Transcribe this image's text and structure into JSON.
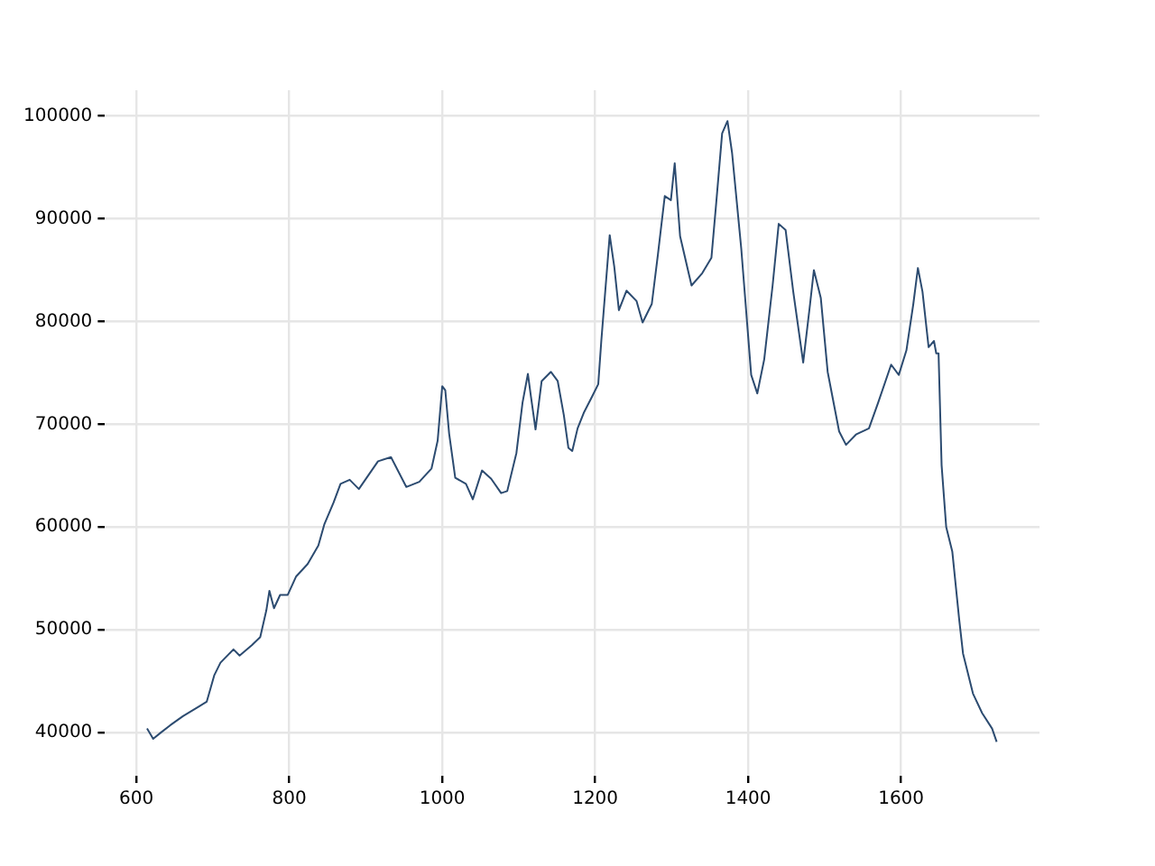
{
  "chart_data": {
    "type": "line",
    "x": [
      614,
      622,
      632,
      644,
      661,
      681,
      692,
      702,
      710,
      727,
      735,
      751,
      762,
      770,
      774,
      780,
      788,
      798,
      809,
      824,
      838,
      846,
      858,
      867,
      879,
      891,
      904,
      916,
      933,
      953,
      970,
      986,
      994,
      1000,
      1004,
      1009,
      1017,
      1031,
      1040,
      1052,
      1064,
      1077,
      1085,
      1097,
      1105,
      1112,
      1116,
      1122,
      1130,
      1142,
      1151,
      1159,
      1165,
      1170,
      1177,
      1185,
      1196,
      1204,
      1208,
      1219,
      1225,
      1231,
      1241,
      1254,
      1262,
      1274,
      1282,
      1291,
      1299,
      1304,
      1311,
      1326,
      1340,
      1352,
      1358,
      1366,
      1373,
      1379,
      1391,
      1404,
      1412,
      1421,
      1432,
      1440,
      1449,
      1459,
      1472,
      1481,
      1486,
      1495,
      1504,
      1519,
      1528,
      1541,
      1558,
      1570,
      1587,
      1597,
      1607,
      1616,
      1622,
      1628,
      1636,
      1643,
      1646,
      1649,
      1653,
      1659,
      1667,
      1676,
      1681,
      1694,
      1706,
      1719,
      1725
    ],
    "values": [
      40400,
      39400,
      40000,
      40700,
      41600,
      42500,
      43000,
      45600,
      46800,
      48100,
      47500,
      48500,
      49300,
      51900,
      53800,
      52100,
      53400,
      53400,
      55200,
      56400,
      58200,
      60300,
      62400,
      64200,
      64600,
      63700,
      65100,
      66400,
      66800,
      63900,
      64400,
      65700,
      68400,
      73700,
      73300,
      69100,
      64800,
      64200,
      62700,
      65500,
      64700,
      63300,
      63500,
      67200,
      72100,
      74900,
      72700,
      69500,
      74200,
      75100,
      74200,
      70900,
      67700,
      67400,
      69600,
      71100,
      72700,
      73900,
      78100,
      88400,
      85300,
      81100,
      83000,
      82000,
      79900,
      81700,
      86500,
      92200,
      91800,
      95400,
      88300,
      83500,
      84700,
      86200,
      91300,
      98300,
      99500,
      96400,
      87100,
      74800,
      73000,
      76300,
      83500,
      89500,
      88900,
      82900,
      76000,
      81700,
      85000,
      82300,
      75100,
      69300,
      68000,
      69000,
      69600,
      72100,
      75800,
      74800,
      77200,
      81700,
      85200,
      82900,
      77500,
      78100,
      76900,
      76900,
      66000,
      60000,
      57600,
      51000,
      47700,
      43800,
      41900,
      40400,
      39100
    ],
    "color": "#2c4b70",
    "xlim": [
      559,
      1781
    ],
    "ylim": [
      35800,
      102500
    ],
    "xticks": [
      600,
      800,
      1000,
      1200,
      1400,
      1600
    ],
    "yticks": [
      40000,
      50000,
      60000,
      70000,
      80000,
      90000,
      100000
    ],
    "grid": true,
    "legend": false,
    "marker": "none",
    "line_style": "solid"
  }
}
